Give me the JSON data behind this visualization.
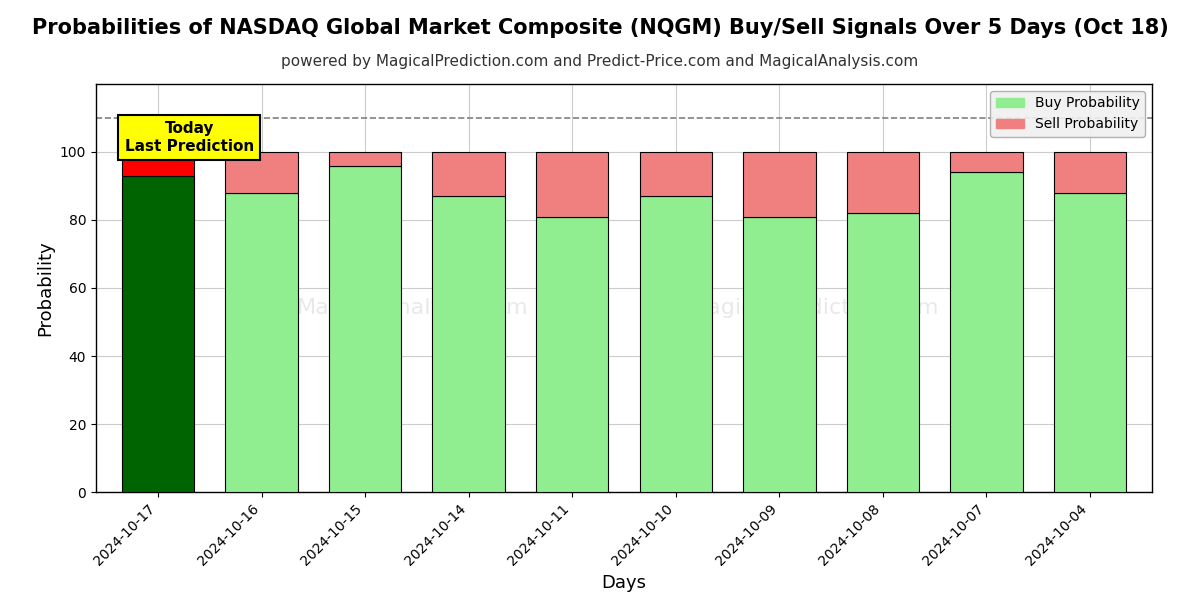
{
  "title": "Probabilities of NASDAQ Global Market Composite (NQGM) Buy/Sell Signals Over 5 Days (Oct 18)",
  "subtitle": "powered by MagicalPrediction.com and Predict-Price.com and MagicalAnalysis.com",
  "xlabel": "Days",
  "ylabel": "Probability",
  "categories": [
    "2024-10-17",
    "2024-10-16",
    "2024-10-15",
    "2024-10-14",
    "2024-10-11",
    "2024-10-10",
    "2024-10-09",
    "2024-10-08",
    "2024-10-07",
    "2024-10-04"
  ],
  "buy_values": [
    93,
    88,
    96,
    87,
    81,
    87,
    81,
    82,
    94,
    88
  ],
  "sell_values": [
    7,
    12,
    4,
    13,
    19,
    13,
    19,
    18,
    6,
    12
  ],
  "today_buy_color": "#006400",
  "today_sell_color": "#FF0000",
  "buy_color": "#90EE90",
  "sell_color": "#F08080",
  "today_annotation": "Today\nLast Prediction",
  "ylim": [
    0,
    120
  ],
  "dashed_line_y": 110,
  "background_color": "#ffffff",
  "grid_color": "#cccccc",
  "bar_edge_color": "#000000",
  "title_fontsize": 15,
  "subtitle_fontsize": 11,
  "axis_label_fontsize": 13,
  "tick_fontsize": 10,
  "legend_fontsize": 10,
  "annotation_fontsize": 11,
  "watermark1": "MagicalAnalysis.com",
  "watermark2": "MagicalPrediction.com",
  "figsize": [
    12,
    6
  ],
  "dpi": 100
}
